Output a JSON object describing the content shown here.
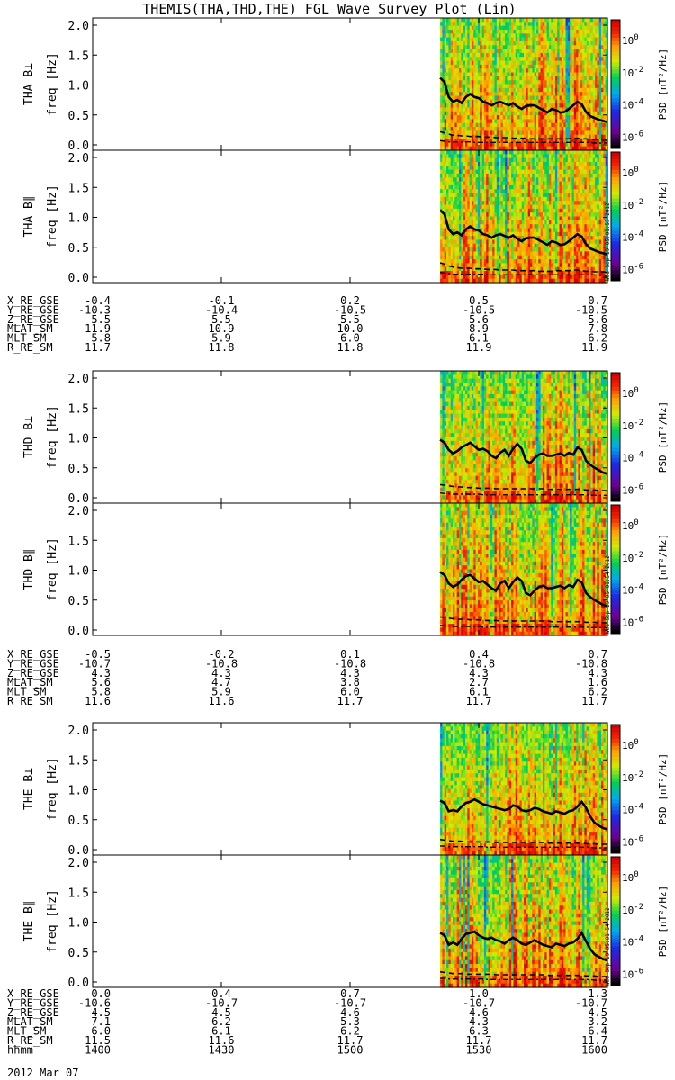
{
  "title": "THEMIS(THA,THD,THE) FGL Wave Survey Plot (Lin)",
  "footer_date": "2012 Mar 07",
  "colorbar_label": "PSD [nT²/Hz]",
  "colorbar_ticks": [
    "10^0",
    "10^-2",
    "10^-4",
    "10^-6"
  ],
  "side_stamps": [
    "Wed Sep 19 05:01:53 2012",
    "Wed Sep 19 05:01:54 2012",
    "Wed Sep 19 05:01:54 2012"
  ],
  "chart_data": {
    "type": "heatmap",
    "time_ticks": [
      "1400",
      "1430",
      "1500",
      "1530",
      "1600"
    ],
    "x_range": [
      "1400",
      "1600"
    ],
    "data_start": "1521",
    "ylim": [
      0,
      2.0
    ],
    "yticks": [
      "0.0",
      "0.5",
      "1.0",
      "1.5",
      "2.0"
    ],
    "ylabel_unit": "freq [Hz]",
    "panels": [
      {
        "label": "THA B⊥",
        "seed": 11,
        "orbit_groups": 0,
        "solid": [
          1.12,
          1.05,
          0.8,
          0.72,
          0.75,
          0.7,
          0.8,
          0.85,
          0.8,
          0.78,
          0.72,
          0.7,
          0.66,
          0.7,
          0.72,
          0.69,
          0.66,
          0.7,
          0.64,
          0.6,
          0.65,
          0.66,
          0.66,
          0.62,
          0.58,
          0.54,
          0.6,
          0.58,
          0.54,
          0.55,
          0.6,
          0.66,
          0.72,
          0.68,
          0.55,
          0.48,
          0.45,
          0.42,
          0.4,
          0.38
        ],
        "dashed": [
          0.22,
          0.2,
          0.18,
          0.16,
          0.16,
          0.15,
          0.15,
          0.14,
          0.14,
          0.14,
          0.13,
          0.13,
          0.13,
          0.12,
          0.12,
          0.12,
          0.12,
          0.11,
          0.11,
          0.11,
          0.11,
          0.1,
          0.1,
          0.1,
          0.1,
          0.1,
          0.1,
          0.1,
          0.1,
          0.1,
          0.1,
          0.11,
          0.11,
          0.1,
          0.1,
          0.09,
          0.09,
          0.09,
          0.08,
          0.08
        ],
        "dashdot": [
          0.07,
          0.06,
          0.05,
          0.05,
          0.05,
          0.05,
          0.05,
          0.05,
          0.04,
          0.04,
          0.04,
          0.04,
          0.04,
          0.04,
          0.04,
          0.04,
          0.04,
          0.04,
          0.04,
          0.04,
          0.04,
          0.04,
          0.04,
          0.04,
          0.04,
          0.04,
          0.04,
          0.04,
          0.04,
          0.04,
          0.04,
          0.04,
          0.04,
          0.04,
          0.04,
          0.04,
          0.03,
          0.03,
          0.03,
          0.03
        ]
      },
      {
        "label": "THA B∥",
        "seed": 23,
        "orbit_groups": 0,
        "solid": [
          1.12,
          1.05,
          0.8,
          0.72,
          0.75,
          0.7,
          0.8,
          0.85,
          0.8,
          0.78,
          0.72,
          0.7,
          0.66,
          0.7,
          0.72,
          0.69,
          0.66,
          0.7,
          0.64,
          0.6,
          0.65,
          0.66,
          0.66,
          0.62,
          0.58,
          0.54,
          0.6,
          0.58,
          0.54,
          0.55,
          0.6,
          0.66,
          0.72,
          0.68,
          0.55,
          0.48,
          0.45,
          0.42,
          0.4,
          0.38
        ],
        "dashed": [
          0.24,
          0.22,
          0.19,
          0.17,
          0.16,
          0.15,
          0.15,
          0.15,
          0.14,
          0.14,
          0.14,
          0.13,
          0.13,
          0.13,
          0.12,
          0.12,
          0.12,
          0.12,
          0.11,
          0.11,
          0.11,
          0.11,
          0.11,
          0.1,
          0.1,
          0.1,
          0.1,
          0.11,
          0.11,
          0.11,
          0.11,
          0.12,
          0.12,
          0.11,
          0.1,
          0.1,
          0.09,
          0.09,
          0.09,
          0.08
        ],
        "dashdot": [
          0.08,
          0.07,
          0.06,
          0.05,
          0.05,
          0.05,
          0.05,
          0.05,
          0.05,
          0.05,
          0.05,
          0.04,
          0.04,
          0.04,
          0.04,
          0.04,
          0.04,
          0.04,
          0.04,
          0.04,
          0.04,
          0.04,
          0.04,
          0.04,
          0.04,
          0.04,
          0.04,
          0.04,
          0.04,
          0.04,
          0.04,
          0.04,
          0.04,
          0.04,
          0.04,
          0.04,
          0.04,
          0.03,
          0.03,
          0.03
        ]
      },
      {
        "label": "THD B⊥",
        "seed": 37,
        "orbit_groups": 1,
        "solid": [
          0.97,
          0.92,
          0.8,
          0.74,
          0.78,
          0.84,
          0.88,
          0.92,
          0.86,
          0.8,
          0.82,
          0.78,
          0.7,
          0.66,
          0.75,
          0.8,
          0.7,
          0.82,
          0.9,
          0.82,
          0.62,
          0.58,
          0.66,
          0.72,
          0.74,
          0.7,
          0.7,
          0.72,
          0.74,
          0.7,
          0.75,
          0.72,
          0.84,
          0.8,
          0.62,
          0.55,
          0.5,
          0.46,
          0.42,
          0.4
        ],
        "dashed": [
          0.22,
          0.21,
          0.2,
          0.19,
          0.18,
          0.18,
          0.17,
          0.17,
          0.17,
          0.16,
          0.16,
          0.16,
          0.16,
          0.15,
          0.15,
          0.15,
          0.15,
          0.15,
          0.15,
          0.15,
          0.15,
          0.15,
          0.15,
          0.15,
          0.15,
          0.14,
          0.14,
          0.14,
          0.14,
          0.14,
          0.14,
          0.14,
          0.14,
          0.14,
          0.13,
          0.13,
          0.13,
          0.12,
          0.12,
          0.12
        ],
        "dashdot": [
          0.08,
          0.07,
          0.07,
          0.06,
          0.06,
          0.06,
          0.06,
          0.06,
          0.06,
          0.06,
          0.05,
          0.05,
          0.05,
          0.05,
          0.05,
          0.05,
          0.05,
          0.05,
          0.05,
          0.05,
          0.05,
          0.05,
          0.05,
          0.05,
          0.05,
          0.05,
          0.05,
          0.05,
          0.05,
          0.05,
          0.05,
          0.05,
          0.05,
          0.05,
          0.05,
          0.04,
          0.04,
          0.04,
          0.04,
          0.04
        ]
      },
      {
        "label": "THD B∥",
        "seed": 41,
        "orbit_groups": 1,
        "solid": [
          0.97,
          0.92,
          0.78,
          0.72,
          0.76,
          0.84,
          0.9,
          0.92,
          0.86,
          0.8,
          0.82,
          0.76,
          0.7,
          0.66,
          0.78,
          0.82,
          0.7,
          0.8,
          0.88,
          0.82,
          0.62,
          0.58,
          0.66,
          0.72,
          0.74,
          0.7,
          0.7,
          0.72,
          0.74,
          0.7,
          0.75,
          0.72,
          0.84,
          0.8,
          0.62,
          0.55,
          0.5,
          0.46,
          0.42,
          0.4
        ],
        "dashed": [
          0.22,
          0.21,
          0.2,
          0.19,
          0.18,
          0.18,
          0.18,
          0.17,
          0.17,
          0.17,
          0.16,
          0.16,
          0.16,
          0.16,
          0.15,
          0.15,
          0.15,
          0.15,
          0.15,
          0.15,
          0.15,
          0.15,
          0.15,
          0.15,
          0.15,
          0.15,
          0.14,
          0.14,
          0.14,
          0.14,
          0.14,
          0.14,
          0.14,
          0.14,
          0.13,
          0.13,
          0.13,
          0.12,
          0.12,
          0.12
        ],
        "dashdot": [
          0.08,
          0.07,
          0.07,
          0.06,
          0.06,
          0.06,
          0.06,
          0.06,
          0.06,
          0.06,
          0.05,
          0.05,
          0.05,
          0.05,
          0.05,
          0.05,
          0.05,
          0.05,
          0.05,
          0.05,
          0.05,
          0.05,
          0.05,
          0.05,
          0.05,
          0.05,
          0.05,
          0.05,
          0.05,
          0.05,
          0.05,
          0.05,
          0.05,
          0.05,
          0.05,
          0.04,
          0.04,
          0.04,
          0.04,
          0.04
        ]
      },
      {
        "label": "THE B⊥",
        "seed": 53,
        "orbit_groups": 2,
        "solid": [
          0.82,
          0.78,
          0.64,
          0.66,
          0.64,
          0.72,
          0.78,
          0.8,
          0.84,
          0.8,
          0.76,
          0.74,
          0.72,
          0.7,
          0.68,
          0.66,
          0.68,
          0.74,
          0.72,
          0.66,
          0.64,
          0.66,
          0.7,
          0.68,
          0.64,
          0.62,
          0.6,
          0.64,
          0.62,
          0.6,
          0.64,
          0.66,
          0.72,
          0.8,
          0.7,
          0.55,
          0.45,
          0.4,
          0.36,
          0.34
        ],
        "dashed": [
          0.17,
          0.16,
          0.15,
          0.14,
          0.14,
          0.14,
          0.13,
          0.13,
          0.13,
          0.13,
          0.13,
          0.13,
          0.13,
          0.12,
          0.12,
          0.12,
          0.12,
          0.12,
          0.12,
          0.12,
          0.12,
          0.12,
          0.12,
          0.12,
          0.12,
          0.11,
          0.11,
          0.11,
          0.11,
          0.11,
          0.11,
          0.11,
          0.11,
          0.11,
          0.1,
          0.1,
          0.1,
          0.09,
          0.09,
          0.09
        ],
        "dashdot": [
          0.06,
          0.06,
          0.05,
          0.05,
          0.05,
          0.05,
          0.05,
          0.05,
          0.05,
          0.05,
          0.05,
          0.04,
          0.04,
          0.04,
          0.04,
          0.04,
          0.04,
          0.04,
          0.04,
          0.04,
          0.04,
          0.04,
          0.04,
          0.04,
          0.04,
          0.04,
          0.04,
          0.04,
          0.04,
          0.04,
          0.04,
          0.04,
          0.04,
          0.04,
          0.04,
          0.04,
          0.03,
          0.03,
          0.03,
          0.03
        ]
      },
      {
        "label": "THE B∥",
        "seed": 67,
        "orbit_groups": 2,
        "solid": [
          0.82,
          0.78,
          0.62,
          0.66,
          0.62,
          0.72,
          0.8,
          0.82,
          0.84,
          0.78,
          0.74,
          0.72,
          0.74,
          0.7,
          0.68,
          0.64,
          0.7,
          0.74,
          0.7,
          0.64,
          0.62,
          0.66,
          0.7,
          0.66,
          0.62,
          0.6,
          0.58,
          0.64,
          0.62,
          0.6,
          0.64,
          0.66,
          0.72,
          0.82,
          0.68,
          0.55,
          0.46,
          0.42,
          0.38,
          0.36
        ],
        "dashed": [
          0.17,
          0.16,
          0.15,
          0.14,
          0.14,
          0.14,
          0.13,
          0.13,
          0.13,
          0.13,
          0.13,
          0.13,
          0.13,
          0.12,
          0.12,
          0.12,
          0.12,
          0.12,
          0.12,
          0.12,
          0.12,
          0.12,
          0.12,
          0.12,
          0.12,
          0.11,
          0.11,
          0.11,
          0.11,
          0.11,
          0.11,
          0.11,
          0.11,
          0.11,
          0.1,
          0.1,
          0.1,
          0.09,
          0.09,
          0.09
        ],
        "dashdot": [
          0.06,
          0.06,
          0.05,
          0.05,
          0.05,
          0.05,
          0.05,
          0.05,
          0.05,
          0.05,
          0.05,
          0.04,
          0.04,
          0.04,
          0.04,
          0.04,
          0.04,
          0.04,
          0.04,
          0.04,
          0.04,
          0.04,
          0.04,
          0.04,
          0.04,
          0.04,
          0.04,
          0.04,
          0.04,
          0.04,
          0.04,
          0.04,
          0.04,
          0.04,
          0.04,
          0.04,
          0.03,
          0.03,
          0.03,
          0.03
        ]
      }
    ],
    "orbit_tables": [
      {
        "rows": [
          {
            "name": "X_RE_GSE",
            "values": [
              "-0.4",
              "-0.1",
              "0.2",
              "0.5",
              "0.7"
            ]
          },
          {
            "name": "Y_RE_GSE",
            "values": [
              "-10.3",
              "-10.4",
              "-10.5",
              "-10.5",
              "-10.5"
            ]
          },
          {
            "name": "Z_RE_GSE",
            "values": [
              "5.5",
              "5.5",
              "5.5",
              "5.6",
              "5.6"
            ]
          },
          {
            "name": "MLAT_SM",
            "values": [
              "11.9",
              "10.9",
              "10.0",
              "8.9",
              "7.8"
            ]
          },
          {
            "name": "MLT_SM",
            "values": [
              "5.8",
              "5.9",
              "6.0",
              "6.1",
              "6.2"
            ]
          },
          {
            "name": "R_RE_SM",
            "values": [
              "11.7",
              "11.8",
              "11.8",
              "11.9",
              "11.9"
            ]
          }
        ]
      },
      {
        "rows": [
          {
            "name": "X_RE_GSE",
            "values": [
              "-0.5",
              "-0.2",
              "0.1",
              "0.4",
              "0.7"
            ]
          },
          {
            "name": "Y_RE_GSE",
            "values": [
              "-10.7",
              "-10.8",
              "-10.8",
              "-10.8",
              "-10.8"
            ]
          },
          {
            "name": "Z_RE_GSE",
            "values": [
              "4.3",
              "4.3",
              "4.3",
              "4.3",
              "4.3"
            ]
          },
          {
            "name": "MLAT_SM",
            "values": [
              "5.6",
              "4.7",
              "3.8",
              "2.7",
              "1.6"
            ]
          },
          {
            "name": "MLT_SM",
            "values": [
              "5.8",
              "5.9",
              "6.0",
              "6.1",
              "6.2"
            ]
          },
          {
            "name": "R_RE_SM",
            "values": [
              "11.6",
              "11.6",
              "11.7",
              "11.7",
              "11.7"
            ]
          }
        ]
      },
      {
        "rows": [
          {
            "name": "X_RE_GSE",
            "values": [
              "0.0",
              "0.4",
              "0.7",
              "1.0",
              "1.3"
            ]
          },
          {
            "name": "Y_RE_GSE",
            "values": [
              "-10.6",
              "-10.7",
              "-10.7",
              "-10.7",
              "-10.7"
            ]
          },
          {
            "name": "Z_RE_GSE",
            "values": [
              "4.5",
              "4.5",
              "4.6",
              "4.6",
              "4.5"
            ]
          },
          {
            "name": "MLAT_SM",
            "values": [
              "7.1",
              "6.2",
              "5.3",
              "4.3",
              "3.2"
            ]
          },
          {
            "name": "MLT_SM",
            "values": [
              "6.0",
              "6.1",
              "6.2",
              "6.3",
              "6.4"
            ]
          },
          {
            "name": "R_RE_SM",
            "values": [
              "11.5",
              "11.6",
              "11.7",
              "11.7",
              "11.7"
            ]
          },
          {
            "name": "hhmm",
            "values": [
              "1400",
              "1430",
              "1500",
              "1530",
              "1600"
            ]
          }
        ]
      }
    ]
  }
}
